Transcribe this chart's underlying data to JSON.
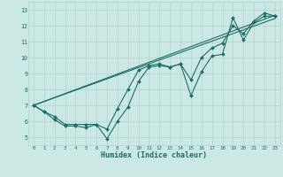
{
  "xlabel": "Humidex (Indice chaleur)",
  "background_color": "#cce8e4",
  "grid_color": "#b0d4cf",
  "line_color": "#1a6e62",
  "xlim": [
    -0.5,
    23.5
  ],
  "ylim": [
    4.5,
    13.5
  ],
  "xticks": [
    0,
    1,
    2,
    3,
    4,
    5,
    6,
    7,
    8,
    9,
    10,
    11,
    12,
    13,
    14,
    15,
    16,
    17,
    18,
    19,
    20,
    21,
    22,
    23
  ],
  "yticks": [
    5,
    6,
    7,
    8,
    9,
    10,
    11,
    12,
    13
  ],
  "series1_x": [
    0,
    1,
    2,
    3,
    4,
    5,
    6,
    7,
    8,
    9,
    10,
    11,
    12,
    13,
    14,
    15,
    16,
    17,
    18,
    19,
    20,
    21,
    22,
    23
  ],
  "series1_y": [
    7.0,
    6.6,
    6.1,
    5.7,
    5.7,
    5.6,
    5.8,
    4.9,
    6.0,
    6.9,
    8.5,
    9.4,
    9.5,
    9.4,
    9.6,
    7.6,
    9.1,
    10.1,
    10.2,
    12.5,
    11.1,
    12.2,
    12.6,
    12.6
  ],
  "series2_x": [
    0,
    1,
    2,
    3,
    4,
    5,
    6,
    7,
    8,
    9,
    10,
    11,
    12,
    13,
    14,
    15,
    16,
    17,
    18,
    19,
    20,
    21,
    22,
    23
  ],
  "series2_y": [
    7.0,
    6.6,
    6.3,
    5.8,
    5.8,
    5.8,
    5.8,
    5.5,
    6.8,
    8.0,
    9.2,
    9.5,
    9.6,
    9.4,
    9.6,
    8.6,
    10.0,
    10.6,
    10.9,
    12.0,
    11.5,
    12.3,
    12.8,
    12.6
  ],
  "trend1_x": [
    0,
    23
  ],
  "trend1_y": [
    7.0,
    12.65
  ],
  "trend2_x": [
    0,
    23
  ],
  "trend2_y": [
    7.0,
    12.45
  ]
}
